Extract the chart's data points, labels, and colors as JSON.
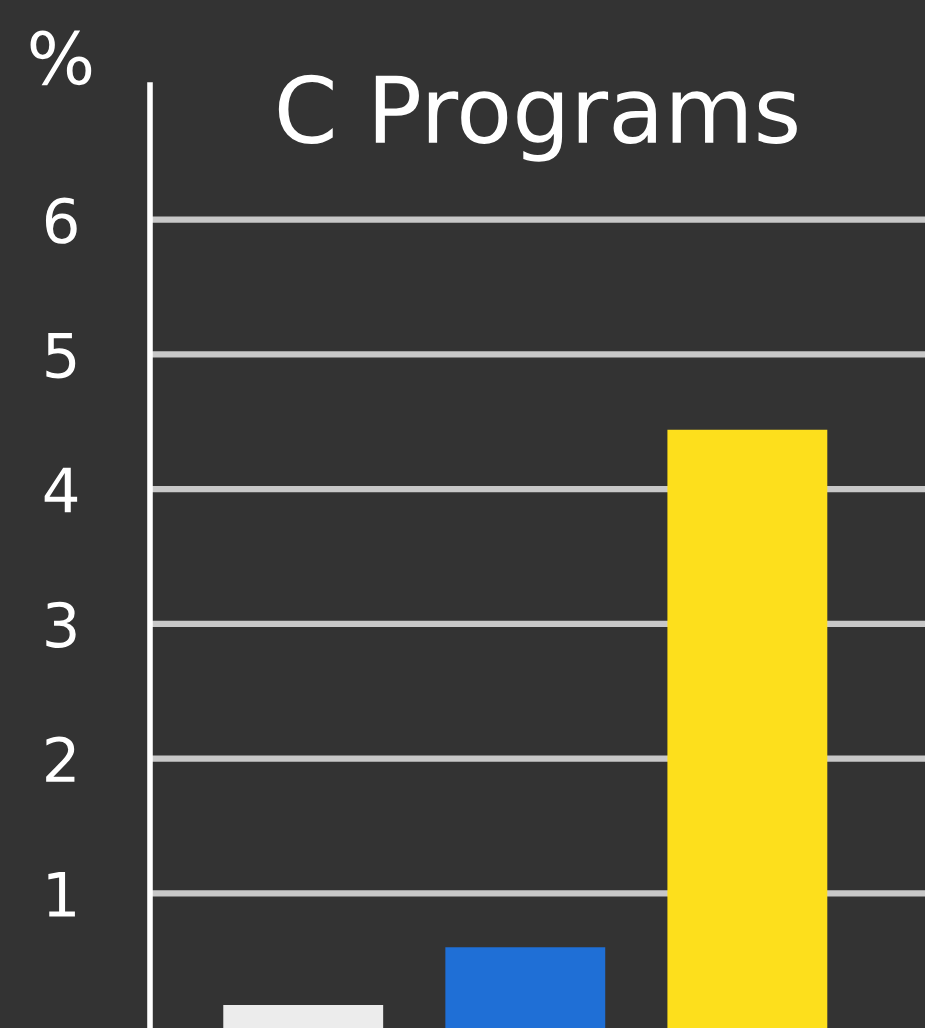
{
  "chart_data": {
    "type": "bar",
    "title": "C Programs",
    "ylabel": "%",
    "categories": [
      null,
      null,
      null
    ],
    "values": [
      0.17,
      0.6,
      4.44
    ],
    "colors": [
      "#ececec",
      "#1f6fd6",
      "#fddf1c"
    ],
    "ylim": [
      0,
      7
    ],
    "yticks": [
      1,
      2,
      3,
      4,
      5,
      6
    ],
    "grid": "y",
    "legend": false
  }
}
